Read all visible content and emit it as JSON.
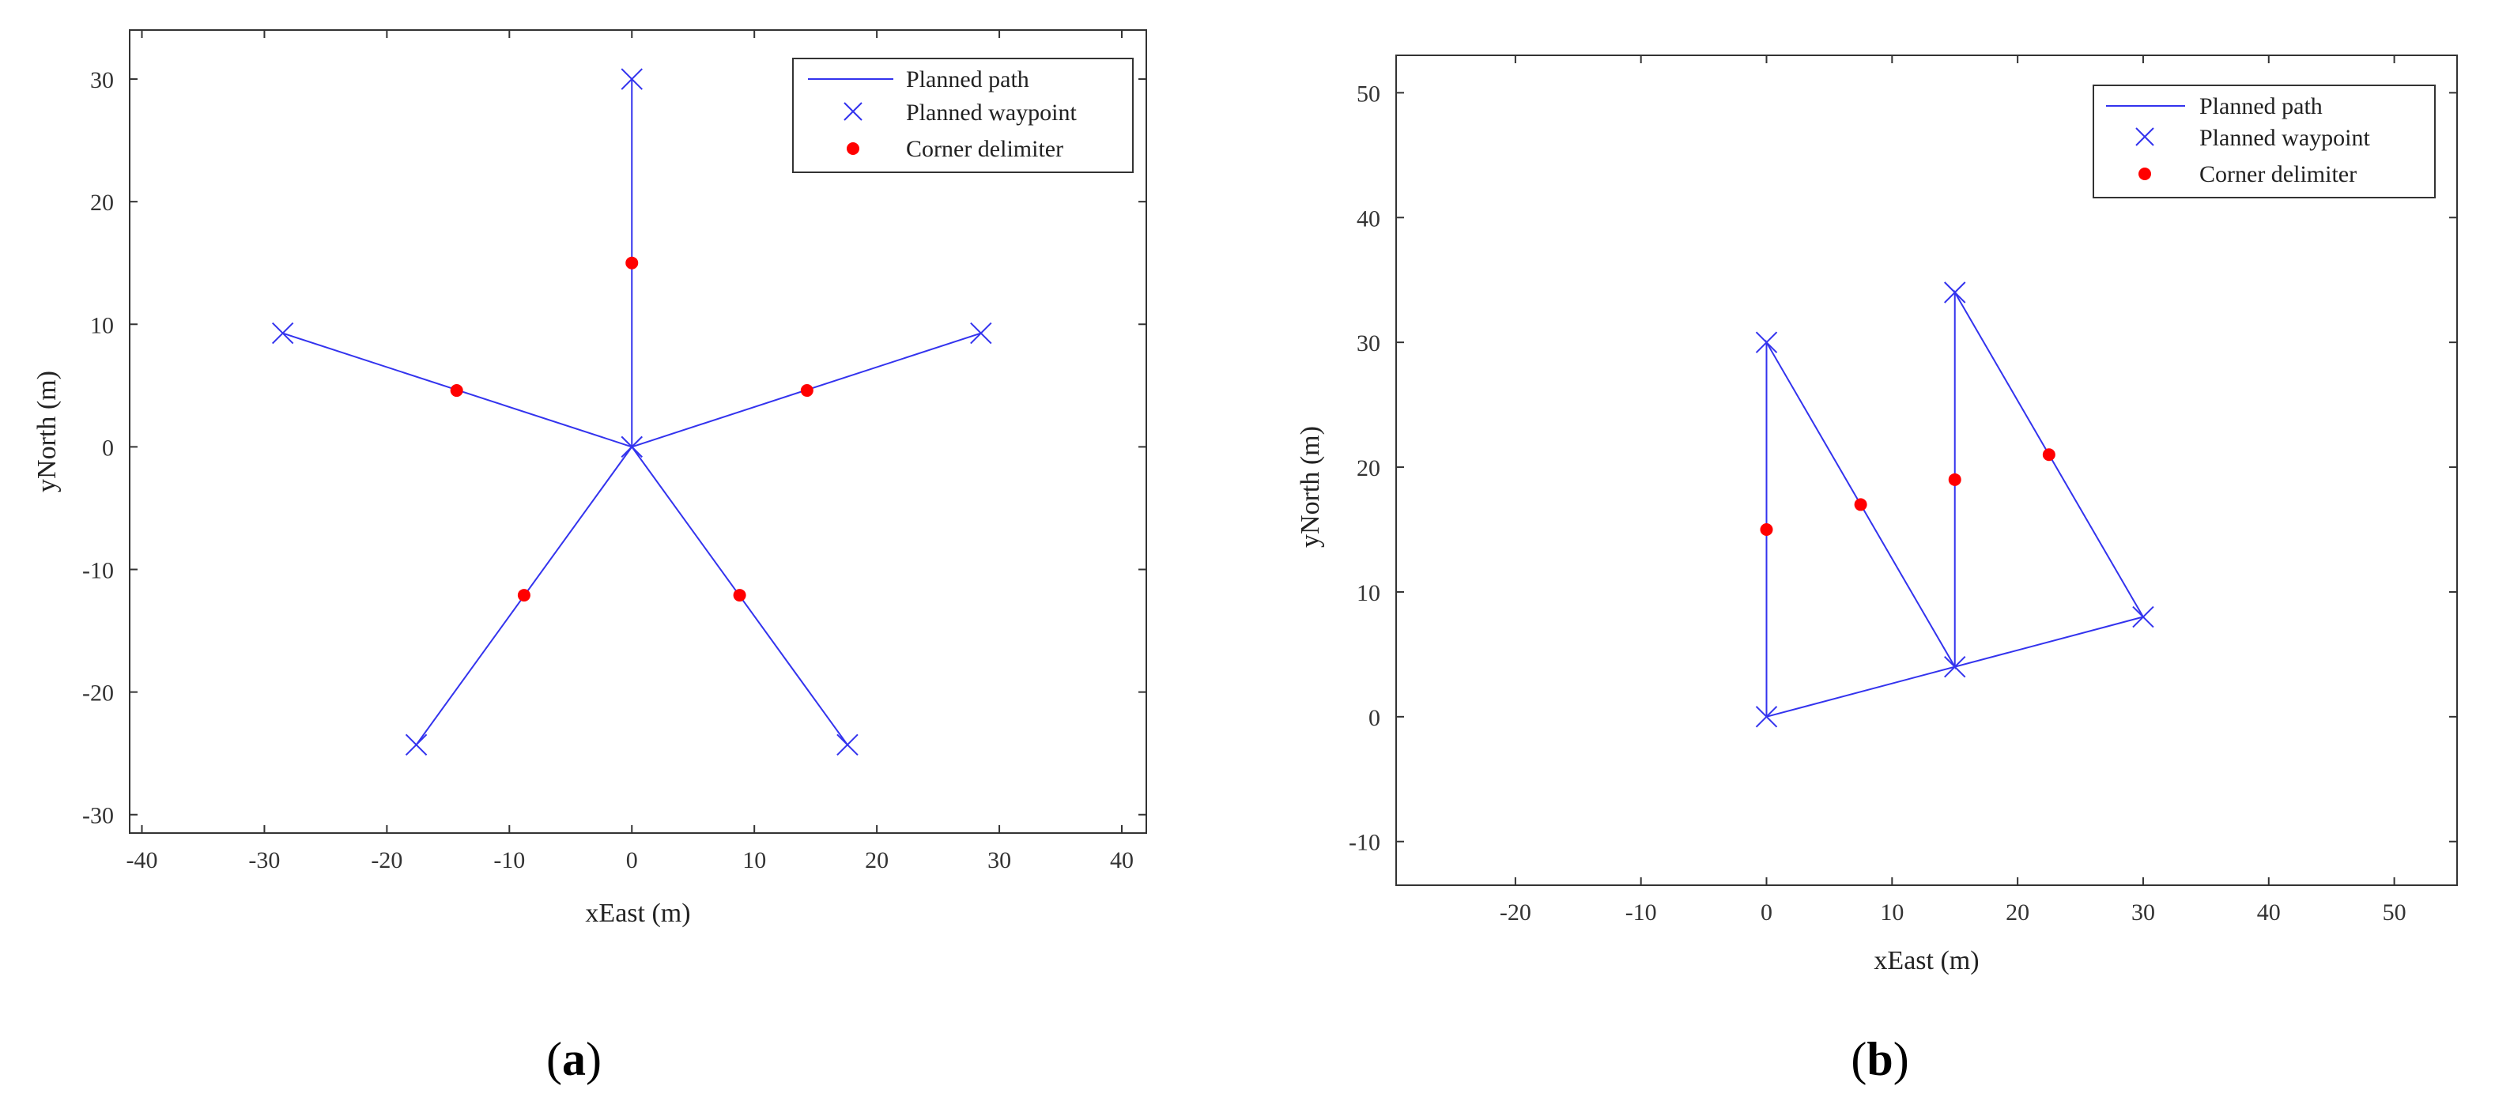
{
  "colors": {
    "path": "#3333ee",
    "waypoint": "#3333ee",
    "corner": "#ff0000",
    "axis": "#333333"
  },
  "chart_data": [
    {
      "panel": "(a)",
      "type": "line",
      "xlabel": "xEast (m)",
      "ylabel": "yNorth (m)",
      "xlim": [
        -41,
        42
      ],
      "ylim": [
        -31.5,
        34
      ],
      "xticks": [
        -40,
        -30,
        -20,
        -10,
        0,
        10,
        20,
        30,
        40
      ],
      "yticks": [
        -30,
        -20,
        -10,
        0,
        10,
        20,
        30
      ],
      "legend": {
        "position": "top-right",
        "entries": [
          "Planned path",
          "Planned waypoint",
          "Corner delimiter"
        ]
      },
      "paths": [
        [
          [
            0,
            0
          ],
          [
            0,
            30
          ]
        ],
        [
          [
            0,
            0
          ],
          [
            28.5,
            9.27
          ]
        ],
        [
          [
            0,
            0
          ],
          [
            17.6,
            -24.3
          ]
        ],
        [
          [
            0,
            0
          ],
          [
            -17.6,
            -24.3
          ]
        ],
        [
          [
            0,
            0
          ],
          [
            -28.5,
            9.27
          ]
        ]
      ],
      "waypoints": [
        [
          0,
          30
        ],
        [
          28.5,
          9.27
        ],
        [
          17.6,
          -24.3
        ],
        [
          -17.6,
          -24.3
        ],
        [
          -28.5,
          9.27
        ],
        [
          0,
          0
        ]
      ],
      "corners": [
        [
          0,
          15
        ],
        [
          14.3,
          4.6
        ],
        [
          8.8,
          -12.1
        ],
        [
          -8.8,
          -12.1
        ],
        [
          -14.3,
          4.6
        ]
      ]
    },
    {
      "panel": "(b)",
      "type": "line",
      "xlabel": "xEast (m)",
      "ylabel": "yNorth (m)",
      "xlim": [
        -29.5,
        55
      ],
      "ylim": [
        -13.5,
        53
      ],
      "xticks": [
        -20,
        -10,
        0,
        10,
        20,
        30,
        40,
        50
      ],
      "yticks": [
        -10,
        0,
        10,
        20,
        30,
        40,
        50
      ],
      "legend": {
        "position": "top-right",
        "entries": [
          "Planned path",
          "Planned waypoint",
          "Corner delimiter"
        ]
      },
      "paths": [
        [
          [
            0,
            0
          ],
          [
            0,
            30
          ],
          [
            15,
            4
          ],
          [
            15,
            34
          ],
          [
            30,
            8
          ],
          [
            0,
            0
          ]
        ]
      ],
      "waypoints": [
        [
          0,
          0
        ],
        [
          0,
          30
        ],
        [
          15,
          4
        ],
        [
          15,
          34
        ],
        [
          30,
          8
        ]
      ],
      "corners": [
        [
          0,
          15
        ],
        [
          7.5,
          17
        ],
        [
          15,
          19
        ],
        [
          22.5,
          21
        ]
      ]
    }
  ]
}
